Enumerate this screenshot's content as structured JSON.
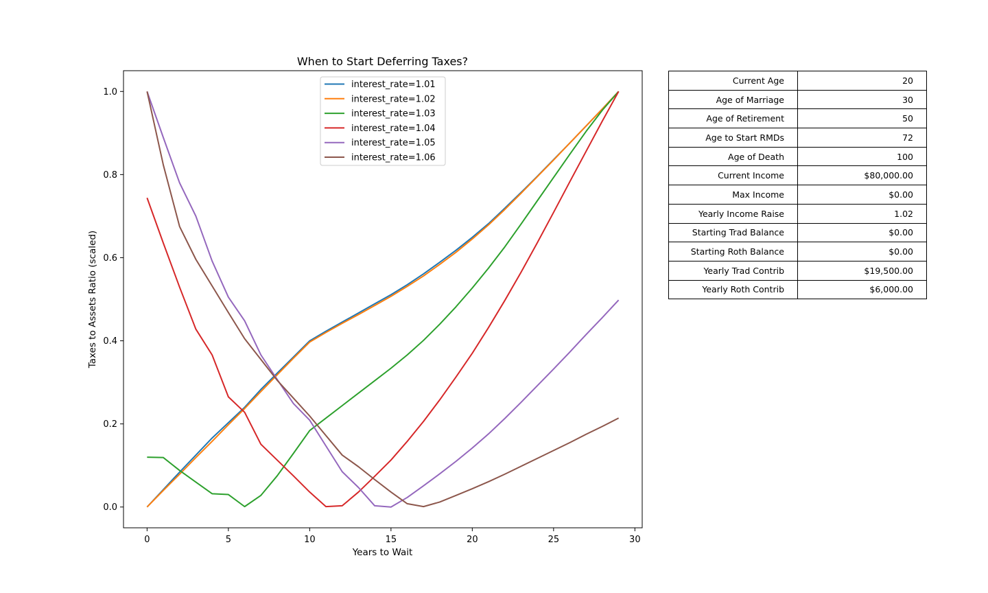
{
  "chart_data": {
    "type": "line",
    "title": "When to Start Deferring Taxes?",
    "xlabel": "Years to Wait",
    "ylabel": "Taxes to Assets Ratio (scaled)",
    "xlim": [
      -1.45,
      30.45
    ],
    "ylim": [
      -0.05,
      1.05
    ],
    "xticks": [
      0,
      5,
      10,
      15,
      20,
      25,
      30
    ],
    "yticks": [
      0.0,
      0.2,
      0.4,
      0.6,
      0.8,
      1.0
    ],
    "xtick_labels": [
      "0",
      "5",
      "10",
      "15",
      "20",
      "25",
      "30"
    ],
    "ytick_labels": [
      "0.0",
      "0.2",
      "0.4",
      "0.6",
      "0.8",
      "1.0"
    ],
    "grid": false,
    "legend_position": "upper center",
    "x": [
      0,
      1,
      2,
      3,
      4,
      5,
      6,
      7,
      8,
      9,
      10,
      11,
      12,
      13,
      14,
      15,
      16,
      17,
      18,
      19,
      20,
      21,
      22,
      23,
      24,
      25,
      26,
      27,
      28,
      29
    ],
    "series": [
      {
        "name": "interest_rate=1.01",
        "color": "#1f77b4",
        "values": [
          0.0,
          0.042,
          0.084,
          0.125,
          0.166,
          0.203,
          0.24,
          0.283,
          0.322,
          0.361,
          0.4,
          0.423,
          0.445,
          0.467,
          0.489,
          0.511,
          0.535,
          0.561,
          0.589,
          0.618,
          0.649,
          0.682,
          0.719,
          0.757,
          0.796,
          0.836,
          0.876,
          0.917,
          0.958,
          1.0
        ]
      },
      {
        "name": "interest_rate=1.02",
        "color": "#ff7f0e",
        "values": [
          0.0,
          0.04,
          0.079,
          0.119,
          0.158,
          0.198,
          0.237,
          0.278,
          0.318,
          0.358,
          0.397,
          0.42,
          0.442,
          0.463,
          0.485,
          0.507,
          0.531,
          0.556,
          0.584,
          0.613,
          0.645,
          0.679,
          0.716,
          0.755,
          0.795,
          0.835,
          0.876,
          0.917,
          0.958,
          1.0
        ]
      },
      {
        "name": "interest_rate=1.03",
        "color": "#2ca02c",
        "values": [
          0.12,
          0.119,
          0.088,
          0.06,
          0.032,
          0.03,
          0.001,
          0.028,
          0.075,
          0.129,
          0.184,
          0.214,
          0.244,
          0.274,
          0.304,
          0.334,
          0.366,
          0.401,
          0.44,
          0.482,
          0.527,
          0.575,
          0.626,
          0.681,
          0.737,
          0.793,
          0.849,
          0.904,
          0.955,
          1.0
        ]
      },
      {
        "name": "interest_rate=1.04",
        "color": "#d62728",
        "values": [
          0.744,
          0.635,
          0.529,
          0.428,
          0.366,
          0.265,
          0.228,
          0.151,
          0.113,
          0.075,
          0.036,
          0.001,
          0.003,
          0.036,
          0.074,
          0.113,
          0.158,
          0.206,
          0.258,
          0.313,
          0.37,
          0.432,
          0.497,
          0.565,
          0.636,
          0.709,
          0.783,
          0.856,
          0.929,
          1.0
        ]
      },
      {
        "name": "interest_rate=1.05",
        "color": "#9467bd",
        "values": [
          1.0,
          0.889,
          0.78,
          0.7,
          0.592,
          0.505,
          0.448,
          0.366,
          0.307,
          0.249,
          0.209,
          0.147,
          0.085,
          0.047,
          0.003,
          0.0,
          0.023,
          0.051,
          0.08,
          0.11,
          0.142,
          0.176,
          0.213,
          0.252,
          0.292,
          0.332,
          0.373,
          0.415,
          0.456,
          0.498
        ]
      },
      {
        "name": "interest_rate=1.06",
        "color": "#8c564b",
        "values": [
          1.0,
          0.823,
          0.675,
          0.596,
          0.532,
          0.468,
          0.405,
          0.355,
          0.305,
          0.262,
          0.219,
          0.172,
          0.125,
          0.097,
          0.066,
          0.036,
          0.008,
          0.001,
          0.012,
          0.028,
          0.044,
          0.061,
          0.079,
          0.098,
          0.117,
          0.136,
          0.155,
          0.175,
          0.194,
          0.214
        ]
      }
    ]
  },
  "table": {
    "rows": [
      {
        "label": "Current Age",
        "value": "20"
      },
      {
        "label": "Age of Marriage",
        "value": "30"
      },
      {
        "label": "Age of Retirement",
        "value": "50"
      },
      {
        "label": "Age to Start RMDs",
        "value": "72"
      },
      {
        "label": "Age of Death",
        "value": "100"
      },
      {
        "label": "Current Income",
        "value": "$80,000.00"
      },
      {
        "label": "Max Income",
        "value": "$0.00"
      },
      {
        "label": "Yearly Income Raise",
        "value": "1.02"
      },
      {
        "label": "Starting Trad Balance",
        "value": "$0.00"
      },
      {
        "label": "Starting Roth Balance",
        "value": "$0.00"
      },
      {
        "label": "Yearly Trad Contrib",
        "value": "$19,500.00"
      },
      {
        "label": "Yearly Roth Contrib",
        "value": "$6,000.00"
      }
    ]
  }
}
